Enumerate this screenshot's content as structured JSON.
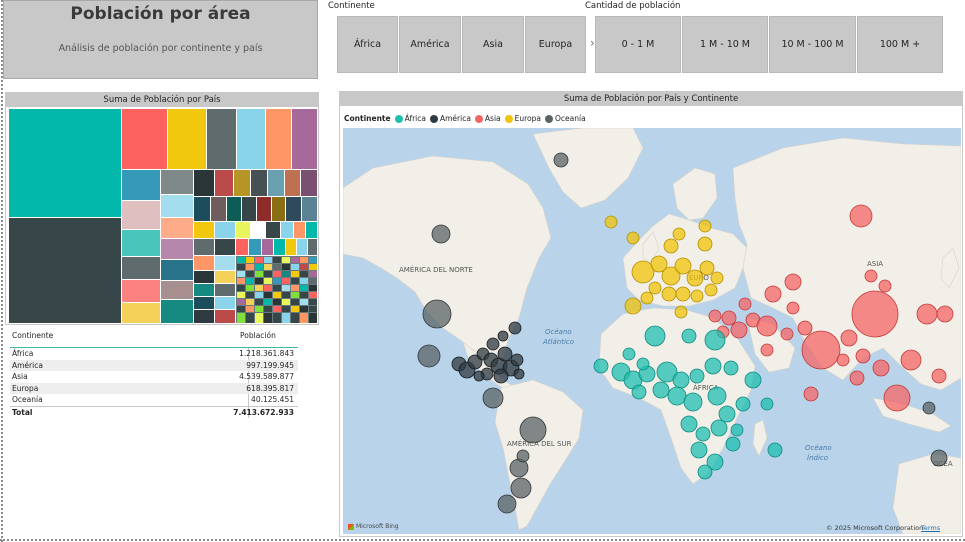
{
  "header": {
    "title": "Población por área",
    "subtitle": "Análisis de población por continente y país"
  },
  "slicers": {
    "continent": {
      "title": "Continente",
      "options": [
        "África",
        "América",
        "Asia",
        "Europa"
      ]
    },
    "population": {
      "title": "Cantidad de población",
      "options": [
        "0 - 1 M",
        "1 M - 10 M",
        "10 M - 100 M",
        "100 M +"
      ]
    }
  },
  "treemap": {
    "title": "Suma de Población por País"
  },
  "table": {
    "headers": [
      "Continente",
      "Población"
    ],
    "rows": [
      {
        "continent": "África",
        "population": "1.218.361.843"
      },
      {
        "continent": "América",
        "population": "997.199.945"
      },
      {
        "continent": "Asia",
        "population": "4.539.589.877"
      },
      {
        "continent": "Europa",
        "population": "618.395.817"
      },
      {
        "continent": "Oceanía",
        "population": "40.125.451"
      }
    ],
    "total": {
      "label": "Total",
      "population": "7.413.672.933"
    }
  },
  "map": {
    "title": "Suma de Población por País y Continente",
    "legend_title": "Continente",
    "legend": [
      {
        "name": "África",
        "color": "#1fbfb0"
      },
      {
        "name": "América",
        "color": "#2f3a40"
      },
      {
        "name": "Asia",
        "color": "#f46666"
      },
      {
        "name": "Europa",
        "color": "#f0c40a"
      },
      {
        "name": "Oceanía",
        "color": "#5a6466"
      }
    ],
    "labels": {
      "north_america": "AMÉRICA DEL NORTE",
      "south_america": "AMÉRICA DEL SUR",
      "europe": "EURO",
      "asia": "ASIA",
      "africa": "ÁFRICA",
      "atlantic_1": "Océano",
      "atlantic_2": "Atlántico",
      "indian_1": "Océano",
      "indian_2": "Índico",
      "oceania_short": "OCEA"
    },
    "copyright": "© 2025 Microsoft Corporation",
    "terms": "Terms",
    "provider": "Microsoft Bing"
  },
  "icons": {
    "chevron": "chevron-right-icon",
    "legend_marker": "circle-icon",
    "map_logo": "bing-logo-icon"
  }
}
